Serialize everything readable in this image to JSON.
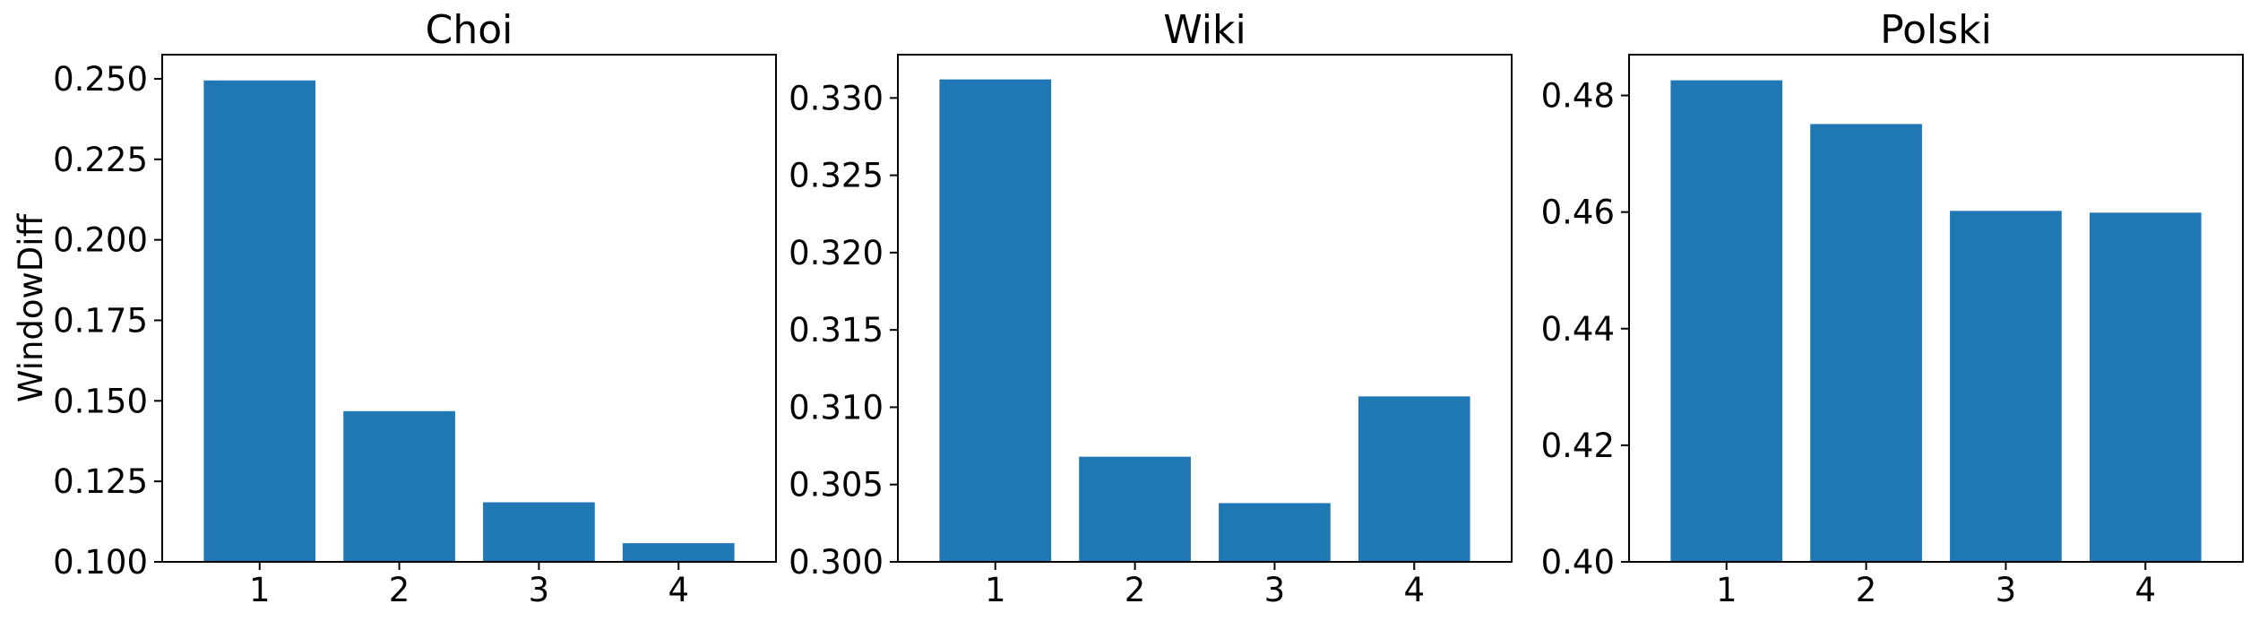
{
  "chart_data": [
    {
      "type": "bar",
      "title": "Choi",
      "ylabel": "WindowDiff",
      "xlabel": "",
      "categories": [
        "1",
        "2",
        "3",
        "4"
      ],
      "values": [
        0.2495,
        0.1468,
        0.1185,
        0.1058
      ],
      "ylim": [
        0.1,
        0.2575
      ],
      "yticks": [
        "0.100",
        "0.125",
        "0.150",
        "0.175",
        "0.200",
        "0.225",
        "0.250"
      ],
      "color": "#1f77b4",
      "grid": false
    },
    {
      "type": "bar",
      "title": "Wiki",
      "ylabel": "",
      "xlabel": "",
      "categories": [
        "1",
        "2",
        "3",
        "4"
      ],
      "values": [
        0.3312,
        0.3068,
        0.3038,
        0.3107
      ],
      "ylim": [
        0.3,
        0.3328
      ],
      "yticks": [
        "0.300",
        "0.305",
        "0.310",
        "0.315",
        "0.320",
        "0.325",
        "0.330"
      ],
      "color": "#1f77b4",
      "grid": false
    },
    {
      "type": "bar",
      "title": "Polski",
      "ylabel": "",
      "xlabel": "",
      "categories": [
        "1",
        "2",
        "3",
        "4"
      ],
      "values": [
        0.4826,
        0.4751,
        0.4602,
        0.4599
      ],
      "ylim": [
        0.4,
        0.487
      ],
      "yticks": [
        "0.40",
        "0.42",
        "0.44",
        "0.46",
        "0.48"
      ],
      "color": "#1f77b4",
      "grid": false
    }
  ]
}
